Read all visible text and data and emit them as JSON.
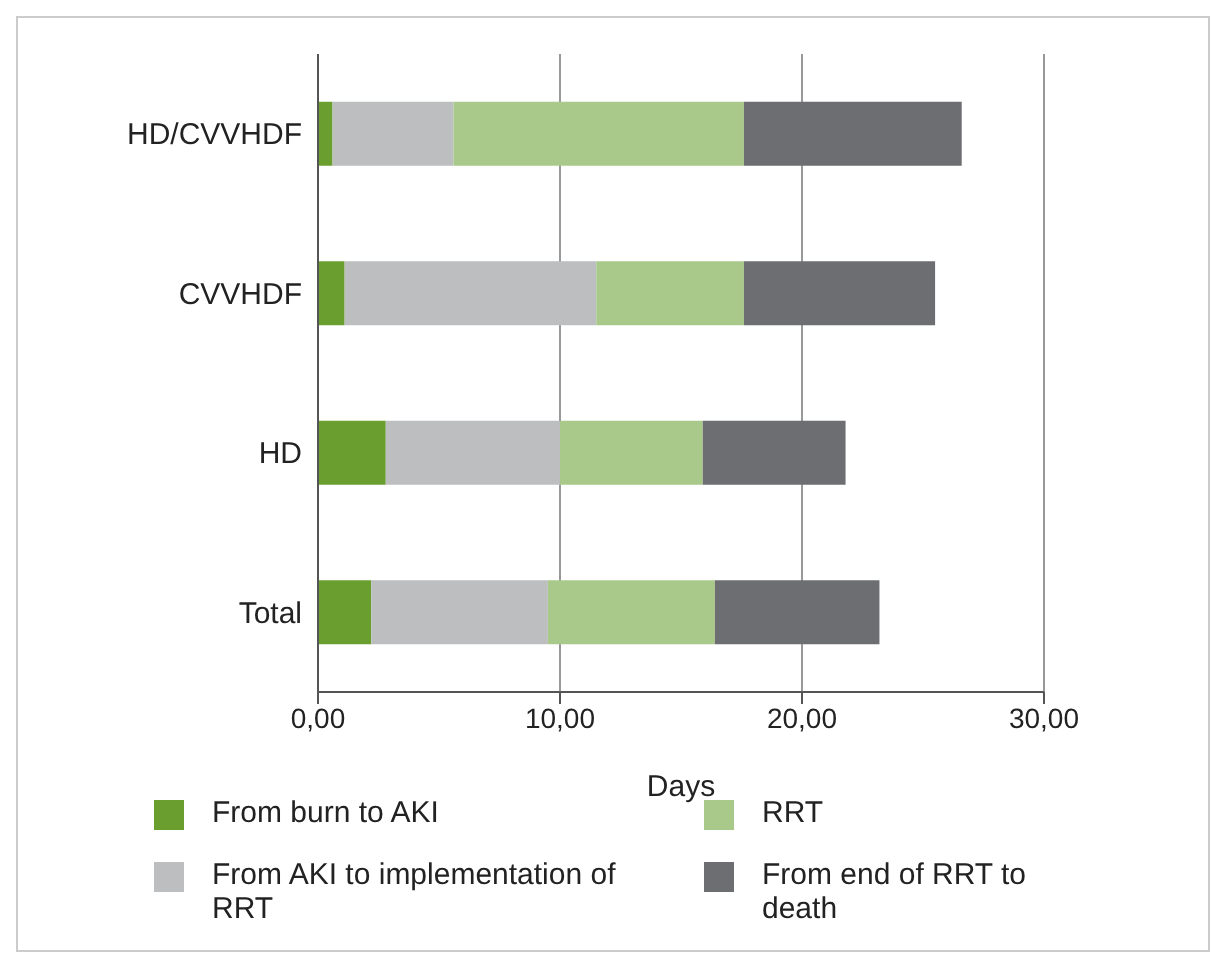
{
  "chart_data": {
    "type": "bar",
    "orientation": "horizontal",
    "stacked": true,
    "xlabel": "Days",
    "categories": [
      "HD/CVVHDF",
      "CVVHDF",
      "HD",
      "Total"
    ],
    "series": [
      {
        "name": "From burn to AKI",
        "color": "#6a9f2f",
        "values": [
          0.6,
          1.1,
          2.8,
          2.2
        ]
      },
      {
        "name": "From AKI to implementation of RRT",
        "color": "#bdbec0",
        "values": [
          5.0,
          10.4,
          7.2,
          7.3
        ]
      },
      {
        "name": "RRT",
        "color": "#a9c98b",
        "values": [
          12.0,
          6.1,
          5.9,
          6.9
        ]
      },
      {
        "name": "From end of RRT to death",
        "color": "#6d6e71",
        "values": [
          9.0,
          7.9,
          5.9,
          6.8
        ]
      }
    ],
    "xlim": [
      0,
      30
    ],
    "xticks": [
      {
        "value": 0,
        "label": "0,00"
      },
      {
        "value": 10,
        "label": "10,00"
      },
      {
        "value": 20,
        "label": "20,00"
      },
      {
        "value": 30,
        "label": "30,00"
      }
    ],
    "grid": "x",
    "legend": "bottom"
  }
}
